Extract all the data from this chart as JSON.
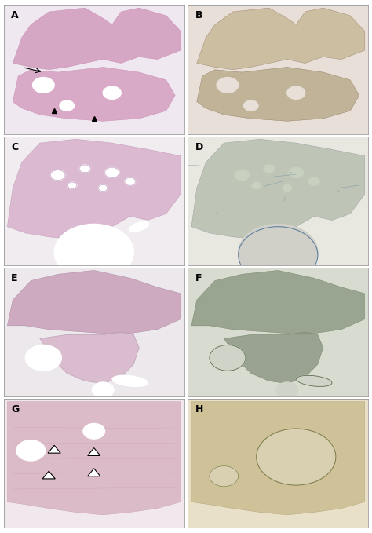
{
  "figsize": [
    4.74,
    6.79
  ],
  "dpi": 100,
  "background_color": "#ffffff",
  "panels": [
    "A",
    "B",
    "C",
    "D",
    "E",
    "F",
    "G",
    "H"
  ],
  "grid_rows": 4,
  "grid_cols": 2,
  "panel_colors": {
    "A": {
      "bg": "#e8d0e0",
      "tissue_main": "#d4a0c0",
      "tissue_dark": "#c080a8",
      "tissue_light": "#edd5e5",
      "bg_fill": "#f0e8f0"
    },
    "B": {
      "bg": "#d8d0c8",
      "tissue_main": "#b8a898",
      "tissue_dark": "#8a7a6a",
      "tissue_light": "#ccc0b0",
      "bg_fill": "#e8e0d8"
    },
    "C": {
      "bg": "#e8d8e8",
      "tissue_main": "#d0a8c8",
      "tissue_dark": "#b888b0",
      "tissue_light": "#e8d5e5",
      "bg_fill": "#f0ecf0"
    },
    "D": {
      "bg": "#d8d8d0",
      "tissue_main": "#b8b0a8",
      "tissue_dark": "#9090a0",
      "tissue_light": "#d0d0c8",
      "bg_fill": "#e8e8e0"
    },
    "E": {
      "bg": "#e0d5e0",
      "tissue_main": "#c8a0b8",
      "tissue_dark": "#a880a0",
      "tissue_light": "#e0d0de",
      "bg_fill": "#ece8ec"
    },
    "F": {
      "bg": "#c8ccc0",
      "tissue_main": "#a0a898",
      "tissue_dark": "#808878",
      "tissue_light": "#c0c8b8",
      "bg_fill": "#d8dcd0"
    },
    "G": {
      "bg": "#e8d0d8",
      "tissue_main": "#d0a0b0",
      "tissue_dark": "#c08898",
      "tissue_light": "#e8d8e0",
      "bg_fill": "#f0e8ec"
    },
    "H": {
      "bg": "#d8d0b8",
      "tissue_main": "#c0b090",
      "tissue_dark": "#a89070",
      "tissue_light": "#d8d0b0",
      "bg_fill": "#e8e0c8"
    }
  },
  "label_fontsize": 9,
  "label_color": "#000000",
  "border_color": "#888888",
  "border_linewidth": 0.5
}
